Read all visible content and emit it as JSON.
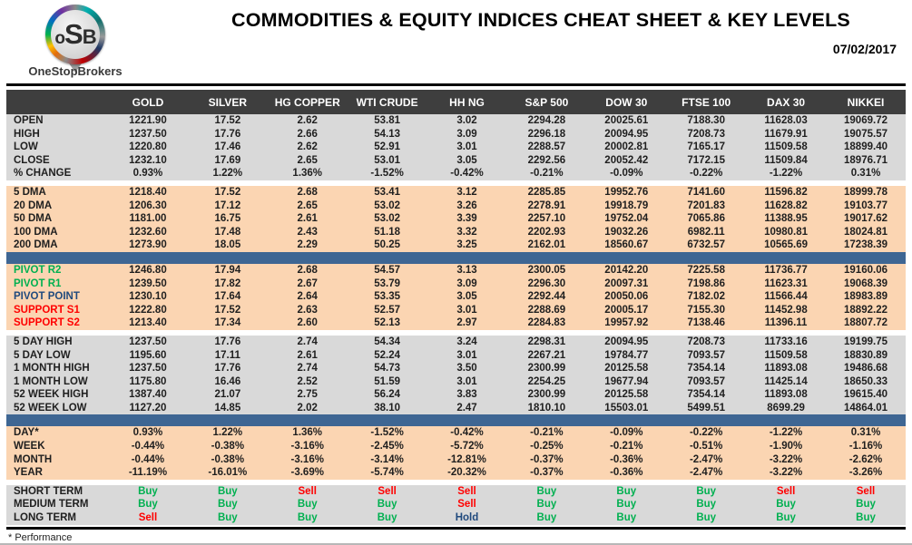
{
  "header": {
    "logo_text_o": "o",
    "logo_text_s": "S",
    "logo_text_b": "B",
    "brand": "OneStopBrokers",
    "title": "COMMODITIES & EQUITY INDICES CHEAT SHEET & KEY LEVELS",
    "date": "07/02/2017"
  },
  "colors": {
    "header_bg": "#3e3e3e",
    "grey_row": "#d9d9d9",
    "peach_row": "#fbd5b2",
    "blue_divider": "#3e6693",
    "green": "#00b050",
    "red": "#ff0000",
    "navy": "#1f497d"
  },
  "signal_colors": {
    "Buy": "#00b050",
    "Sell": "#ff0000",
    "Hold": "#1f497d"
  },
  "table": {
    "columns": [
      "GOLD",
      "SILVER",
      "HG COPPER",
      "WTI CRUDE",
      "HH NG",
      "S&P 500",
      "DOW 30",
      "FTSE 100",
      "DAX 30",
      "NIKKEI"
    ],
    "sections": [
      {
        "name": "ohlc",
        "bg": "grey",
        "rows": [
          {
            "label": "OPEN",
            "values": [
              "1221.90",
              "17.52",
              "2.62",
              "53.81",
              "3.02",
              "2294.28",
              "20025.61",
              "7188.30",
              "11628.03",
              "19069.72"
            ]
          },
          {
            "label": "HIGH",
            "values": [
              "1237.50",
              "17.76",
              "2.66",
              "54.13",
              "3.09",
              "2296.18",
              "20094.95",
              "7208.73",
              "11679.91",
              "19075.57"
            ]
          },
          {
            "label": "LOW",
            "values": [
              "1220.80",
              "17.46",
              "2.62",
              "52.91",
              "3.01",
              "2288.57",
              "20002.81",
              "7165.17",
              "11509.58",
              "18899.40"
            ]
          },
          {
            "label": "CLOSE",
            "values": [
              "1232.10",
              "17.69",
              "2.65",
              "53.01",
              "3.05",
              "2292.56",
              "20052.42",
              "7172.15",
              "11509.84",
              "18976.71"
            ]
          },
          {
            "label": "% CHANGE",
            "values": [
              "0.93%",
              "1.22%",
              "1.36%",
              "-1.52%",
              "-0.42%",
              "-0.21%",
              "-0.09%",
              "-0.22%",
              "-1.22%",
              "0.31%"
            ]
          }
        ]
      },
      {
        "name": "moving-averages",
        "bg": "peach",
        "divider_before": "gap",
        "rows": [
          {
            "label": "5 DMA",
            "values": [
              "1218.40",
              "17.52",
              "2.68",
              "53.41",
              "3.12",
              "2285.85",
              "19952.76",
              "7141.60",
              "11596.82",
              "18999.78"
            ]
          },
          {
            "label": "20 DMA",
            "values": [
              "1206.30",
              "17.12",
              "2.65",
              "53.02",
              "3.26",
              "2278.91",
              "19918.79",
              "7201.83",
              "11628.82",
              "19103.77"
            ]
          },
          {
            "label": "50 DMA",
            "values": [
              "1181.00",
              "16.75",
              "2.61",
              "53.02",
              "3.39",
              "2257.10",
              "19752.04",
              "7065.86",
              "11388.95",
              "19017.62"
            ]
          },
          {
            "label": "100 DMA",
            "values": [
              "1232.60",
              "17.48",
              "2.43",
              "51.18",
              "3.32",
              "2202.93",
              "19032.26",
              "6982.11",
              "10980.81",
              "18024.81"
            ]
          },
          {
            "label": "200 DMA",
            "values": [
              "1273.90",
              "18.05",
              "2.29",
              "50.25",
              "3.25",
              "2162.01",
              "18560.67",
              "6732.57",
              "10565.69",
              "17238.39"
            ]
          }
        ]
      },
      {
        "name": "pivots",
        "bg": "peach",
        "divider_before": "blue",
        "rows": [
          {
            "label": "PIVOT R2",
            "label_color": "#00b050",
            "values": [
              "1246.80",
              "17.94",
              "2.68",
              "54.57",
              "3.13",
              "2300.05",
              "20142.20",
              "7225.58",
              "11736.77",
              "19160.06"
            ]
          },
          {
            "label": "PIVOT R1",
            "label_color": "#00b050",
            "values": [
              "1239.50",
              "17.82",
              "2.67",
              "53.79",
              "3.09",
              "2296.30",
              "20097.31",
              "7198.86",
              "11623.31",
              "19068.39"
            ]
          },
          {
            "label": "PIVOT POINT",
            "label_color": "#1f497d",
            "values": [
              "1230.10",
              "17.64",
              "2.64",
              "53.35",
              "3.05",
              "2292.44",
              "20050.06",
              "7182.02",
              "11566.44",
              "18983.89"
            ]
          },
          {
            "label": "SUPPORT S1",
            "label_color": "#ff0000",
            "values": [
              "1222.80",
              "17.52",
              "2.63",
              "52.57",
              "3.01",
              "2288.69",
              "20005.17",
              "7155.30",
              "11452.98",
              "18892.22"
            ]
          },
          {
            "label": "SUPPORT S2",
            "label_color": "#ff0000",
            "values": [
              "1213.40",
              "17.34",
              "2.60",
              "52.13",
              "2.97",
              "2284.83",
              "19957.92",
              "7138.46",
              "11396.11",
              "18807.72"
            ]
          }
        ]
      },
      {
        "name": "ranges",
        "bg": "grey",
        "divider_before": "gap",
        "rows": [
          {
            "label": "5 DAY HIGH",
            "values": [
              "1237.50",
              "17.76",
              "2.74",
              "54.34",
              "3.24",
              "2298.31",
              "20094.95",
              "7208.73",
              "11733.16",
              "19199.75"
            ]
          },
          {
            "label": "5 DAY LOW",
            "values": [
              "1195.60",
              "17.11",
              "2.61",
              "52.24",
              "3.01",
              "2267.21",
              "19784.77",
              "7093.57",
              "11509.58",
              "18830.89"
            ]
          },
          {
            "label": "1 MONTH HIGH",
            "values": [
              "1237.50",
              "17.76",
              "2.74",
              "54.73",
              "3.50",
              "2300.99",
              "20125.58",
              "7354.14",
              "11893.08",
              "19486.68"
            ]
          },
          {
            "label": "1 MONTH LOW",
            "values": [
              "1175.80",
              "16.46",
              "2.52",
              "51.59",
              "3.01",
              "2254.25",
              "19677.94",
              "7093.57",
              "11425.14",
              "18650.33"
            ]
          },
          {
            "label": "52 WEEK HIGH",
            "values": [
              "1387.40",
              "21.07",
              "2.75",
              "56.24",
              "3.83",
              "2300.99",
              "20125.58",
              "7354.14",
              "11893.08",
              "19615.40"
            ]
          },
          {
            "label": "52 WEEK LOW",
            "values": [
              "1127.20",
              "14.85",
              "2.02",
              "38.10",
              "2.47",
              "1810.10",
              "15503.01",
              "5499.51",
              "8699.29",
              "14864.01"
            ]
          }
        ]
      },
      {
        "name": "performance",
        "bg": "peach",
        "divider_before": "blue",
        "rows": [
          {
            "label": "DAY*",
            "values": [
              "0.93%",
              "1.22%",
              "1.36%",
              "-1.52%",
              "-0.42%",
              "-0.21%",
              "-0.09%",
              "-0.22%",
              "-1.22%",
              "0.31%"
            ]
          },
          {
            "label": "WEEK",
            "values": [
              "-0.44%",
              "-0.38%",
              "-3.16%",
              "-2.45%",
              "-5.72%",
              "-0.25%",
              "-0.21%",
              "-0.51%",
              "-1.90%",
              "-1.16%"
            ]
          },
          {
            "label": "MONTH",
            "values": [
              "-0.44%",
              "-0.38%",
              "-3.16%",
              "-3.14%",
              "-12.81%",
              "-0.37%",
              "-0.36%",
              "-2.47%",
              "-3.22%",
              "-2.62%"
            ]
          },
          {
            "label": "YEAR",
            "values": [
              "-11.19%",
              "-16.01%",
              "-3.69%",
              "-5.74%",
              "-20.32%",
              "-0.37%",
              "-0.36%",
              "-2.47%",
              "-3.22%",
              "-3.26%"
            ]
          }
        ]
      },
      {
        "name": "signals",
        "bg": "grey",
        "divider_before": "gap",
        "signals": true,
        "rows": [
          {
            "label": "SHORT TERM",
            "values": [
              "Buy",
              "Buy",
              "Sell",
              "Sell",
              "Sell",
              "Buy",
              "Buy",
              "Buy",
              "Sell",
              "Sell"
            ]
          },
          {
            "label": "MEDIUM TERM",
            "values": [
              "Buy",
              "Buy",
              "Buy",
              "Buy",
              "Sell",
              "Buy",
              "Buy",
              "Buy",
              "Buy",
              "Buy"
            ]
          },
          {
            "label": "LONG TERM",
            "values": [
              "Sell",
              "Buy",
              "Buy",
              "Buy",
              "Hold",
              "Buy",
              "Buy",
              "Buy",
              "Buy",
              "Buy"
            ]
          }
        ]
      }
    ]
  },
  "footer": {
    "note": "* Performance"
  }
}
